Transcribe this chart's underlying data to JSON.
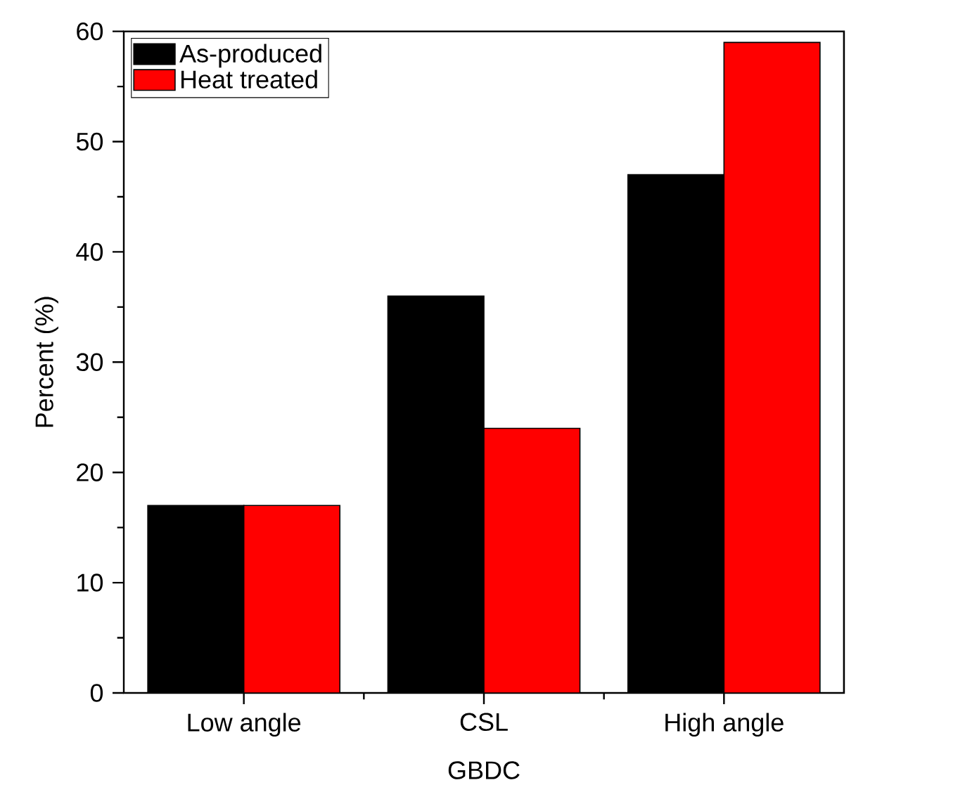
{
  "chart_data": {
    "type": "bar",
    "xlabel": "GBDC",
    "ylabel": "Percent (%)",
    "categories": [
      "Low angle",
      "CSL",
      "High angle"
    ],
    "series": [
      {
        "name": "As-produced",
        "color": "#000000",
        "values": [
          17,
          36,
          47
        ]
      },
      {
        "name": "Heat treated",
        "color": "#ff0000",
        "values": [
          17,
          24,
          59
        ]
      }
    ],
    "ylim": [
      0,
      60
    ],
    "yticks": [
      0,
      10,
      20,
      30,
      40,
      50,
      60
    ],
    "legend": "top left"
  }
}
